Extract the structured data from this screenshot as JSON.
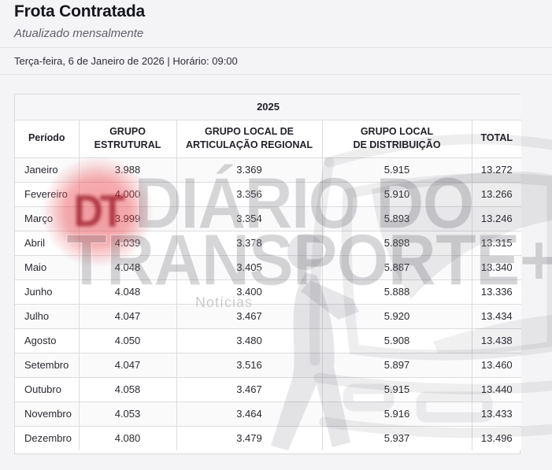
{
  "page": {
    "title": "Frota Contratada",
    "subtitle": "Atualizado mensalmente",
    "date_line": "Terça-feira, 6 de Janeiro de 2026 | Horário: 09:00"
  },
  "table": {
    "year": "2025",
    "columns": {
      "period": "Período",
      "structural_line1": "GRUPO",
      "structural_line2": "ESTRUTURAL",
      "articulation_line1": "GRUPO LOCAL DE",
      "articulation_line2": "ARTICULAÇÃO REGIONAL",
      "distribution_line1": "GRUPO LOCAL",
      "distribution_line2": "DE DISTRIBUIÇÃO",
      "total": "TOTAL"
    },
    "rows": [
      {
        "month": "Janeiro",
        "values": [
          "3.988",
          "3.369",
          "5.915"
        ],
        "total": "13.272"
      },
      {
        "month": "Fevereiro",
        "values": [
          "4.000",
          "3.356",
          "5.910"
        ],
        "total": "13.266"
      },
      {
        "month": "Março",
        "values": [
          "3.999",
          "3.354",
          "5.893"
        ],
        "total": "13.246"
      },
      {
        "month": "Abril",
        "values": [
          "4.039",
          "3.378",
          "5.898"
        ],
        "total": "13.315"
      },
      {
        "month": "Maio",
        "values": [
          "4.048",
          "3.405",
          "5.887"
        ],
        "total": "13.340"
      },
      {
        "month": "Junho",
        "values": [
          "4.048",
          "3.400",
          "5.888"
        ],
        "total": "13.336"
      },
      {
        "month": "Julho",
        "values": [
          "4.047",
          "3.467",
          "5.920"
        ],
        "total": "13.434"
      },
      {
        "month": "Agosto",
        "values": [
          "4.050",
          "3.480",
          "5.908"
        ],
        "total": "13.438"
      },
      {
        "month": "Setembro",
        "values": [
          "4.047",
          "3.516",
          "5.897"
        ],
        "total": "13.460"
      },
      {
        "month": "Outubro",
        "values": [
          "4.058",
          "3.467",
          "5.915"
        ],
        "total": "13.440"
      },
      {
        "month": "Novembro",
        "values": [
          "4.053",
          "3.464",
          "5.916"
        ],
        "total": "13.433"
      },
      {
        "month": "Dezembro",
        "values": [
          "4.080",
          "3.479",
          "5.937"
        ],
        "total": "13.496"
      }
    ]
  },
  "watermark": {
    "logo_initials": "DT",
    "line1": "DIÁRIO DO",
    "line2": "TRANSPORTE+",
    "tagline": "Notícias"
  },
  "colors": {
    "page_bg": "#f4f4f6",
    "card_bg": "#ffffff",
    "border": "#dcdce0",
    "header_bg": "#f6f6f8",
    "stripe_bg": "#fafafb",
    "text": "#26262e",
    "watermark_red": "#e93940",
    "watermark_gray": "#5f5f69"
  },
  "chart_data": {
    "type": "table",
    "title": "Frota Contratada",
    "subtitle": "Atualizado mensalmente",
    "year": "2025",
    "categories": [
      "Janeiro",
      "Fevereiro",
      "Março",
      "Abril",
      "Maio",
      "Junho",
      "Julho",
      "Agosto",
      "Setembro",
      "Outubro",
      "Novembro",
      "Dezembro"
    ],
    "series": [
      {
        "name": "GRUPO ESTRUTURAL",
        "values": [
          3988,
          4000,
          3999,
          4039,
          4048,
          4048,
          4047,
          4050,
          4047,
          4058,
          4053,
          4080
        ]
      },
      {
        "name": "GRUPO LOCAL DE ARTICULAÇÃO REGIONAL",
        "values": [
          3369,
          3356,
          3354,
          3378,
          3405,
          3400,
          3467,
          3480,
          3516,
          3467,
          3464,
          3479
        ]
      },
      {
        "name": "GRUPO LOCAL DE DISTRIBUIÇÃO",
        "values": [
          5915,
          5910,
          5893,
          5898,
          5887,
          5888,
          5920,
          5908,
          5897,
          5915,
          5916,
          5937
        ]
      },
      {
        "name": "TOTAL",
        "values": [
          13272,
          13266,
          13246,
          13315,
          13340,
          13336,
          13434,
          13438,
          13460,
          13440,
          13433,
          13496
        ]
      }
    ]
  }
}
